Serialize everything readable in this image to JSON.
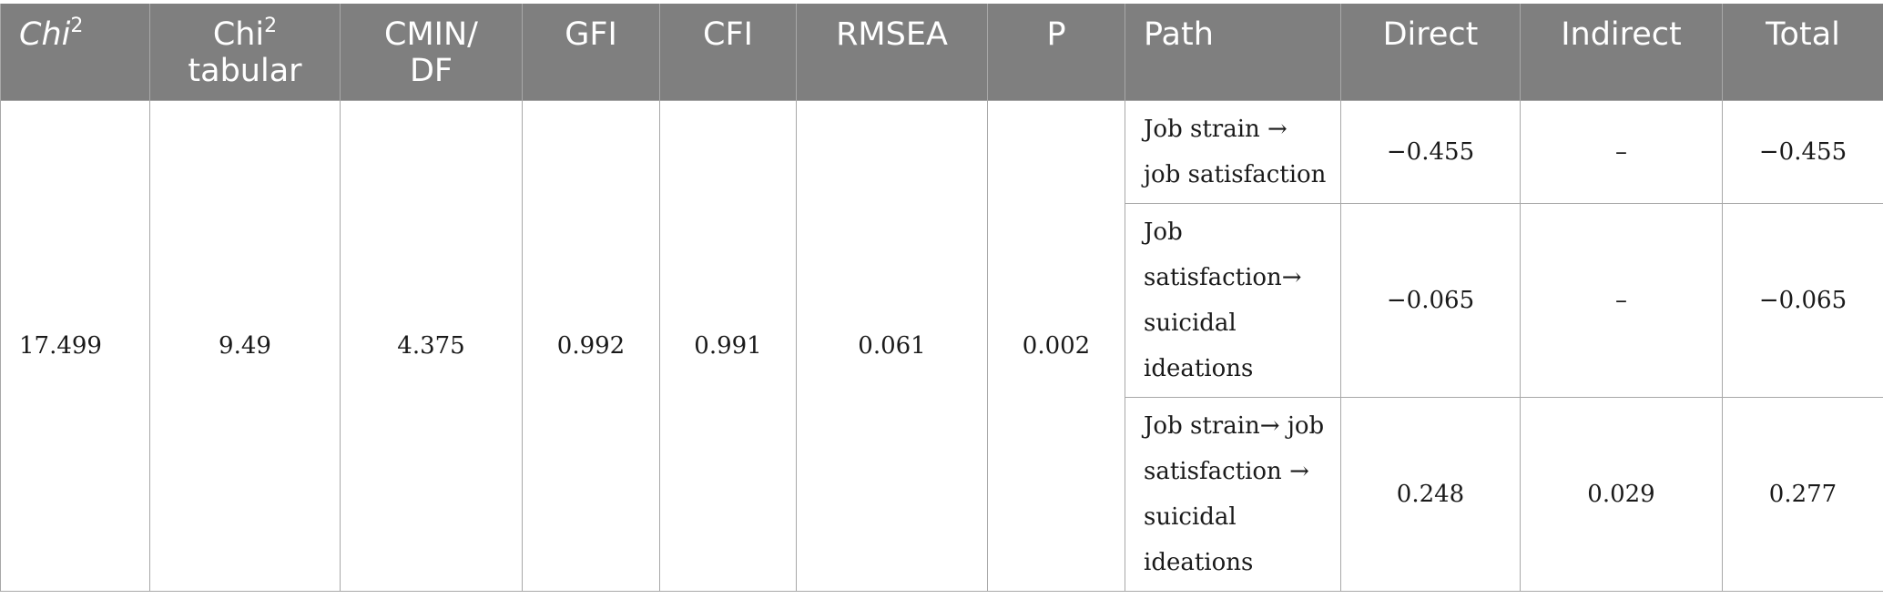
{
  "table": {
    "headers": {
      "chi2": "Chi",
      "chi2_sup": "2",
      "chi2_tabular_a": "Chi",
      "chi2_tabular_sup": "2",
      "chi2_tabular_b": "tabular",
      "cmin_df_a": "CMIN/",
      "cmin_df_b": "DF",
      "gfi": "GFI",
      "cfi": "CFI",
      "rmsea": "RMSEA",
      "p": "P",
      "path": "Path",
      "direct": "Direct",
      "indirect": "Indirect",
      "total": "Total"
    },
    "fit": {
      "chi2": "17.499",
      "chi2_tabular": "9.49",
      "cmin_df": "4.375",
      "gfi": "0.992",
      "cfi": "0.991",
      "rmsea": "0.061",
      "p": "0.002"
    },
    "paths": [
      {
        "path": "Job strain → job satisfaction",
        "direct": "−0.455",
        "indirect": "–",
        "total": "−0.455"
      },
      {
        "path": "Job satisfaction→ suicidal ideations",
        "direct": "−0.065",
        "indirect": "–",
        "total": "−0.065"
      },
      {
        "path": "Job strain→ job satisfaction → suicidal ideations",
        "direct": "0.248",
        "indirect": "0.029",
        "total": "0.277"
      }
    ]
  }
}
